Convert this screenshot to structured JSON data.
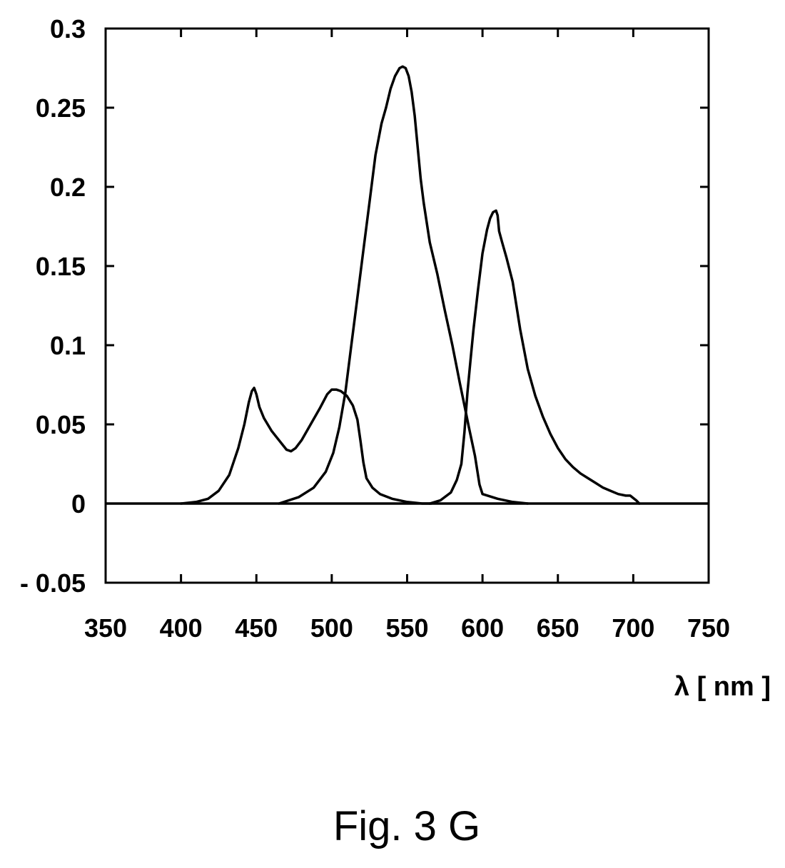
{
  "chart_data": {
    "type": "line",
    "title": "",
    "xlabel": "λ [ nm ]",
    "ylabel": "",
    "xlim": [
      350,
      750
    ],
    "ylim": [
      -0.05,
      0.3
    ],
    "x_ticks": [
      350,
      400,
      450,
      500,
      550,
      600,
      650,
      700,
      750
    ],
    "x_tick_labels": [
      "350",
      "400",
      "450",
      "500",
      "550",
      "600",
      "650",
      "700",
      "750"
    ],
    "y_ticks": [
      -0.05,
      0,
      0.05,
      0.1,
      0.15,
      0.2,
      0.25,
      0.3
    ],
    "y_tick_labels": [
      "- 0.05",
      "0",
      "0.05",
      "0.1",
      "0.15",
      "0.2",
      "0.25",
      "0.3"
    ],
    "grid": false,
    "legend": "none",
    "line_color": "#000000",
    "zero_line": true,
    "series": [
      {
        "x": [
          400,
          410,
          418,
          425,
          432,
          438,
          442,
          445,
          447,
          448.5,
          450,
          452,
          455,
          460,
          465,
          470,
          473,
          476,
          480,
          486,
          492,
          497,
          500,
          503,
          506,
          510,
          514,
          517,
          519,
          521,
          523,
          527,
          532,
          540,
          550,
          560,
          566
        ],
        "y": [
          0,
          0.001,
          0.003,
          0.008,
          0.018,
          0.035,
          0.05,
          0.064,
          0.071,
          0.073,
          0.069,
          0.061,
          0.054,
          0.046,
          0.04,
          0.034,
          0.033,
          0.035,
          0.04,
          0.05,
          0.06,
          0.069,
          0.072,
          0.072,
          0.071,
          0.068,
          0.062,
          0.053,
          0.04,
          0.026,
          0.016,
          0.01,
          0.006,
          0.003,
          0.001,
          0,
          0
        ]
      },
      {
        "x": [
          465,
          478,
          488,
          496,
          501,
          505,
          509,
          513,
          517,
          521,
          525,
          529,
          533,
          536,
          539,
          542,
          545,
          547,
          549,
          551,
          553,
          555,
          557,
          559,
          561,
          565,
          570,
          575,
          580,
          585,
          588,
          591,
          595,
          598,
          600,
          610,
          620,
          630
        ],
        "y": [
          0,
          0.004,
          0.01,
          0.02,
          0.032,
          0.048,
          0.07,
          0.1,
          0.13,
          0.16,
          0.19,
          0.22,
          0.24,
          0.25,
          0.262,
          0.27,
          0.275,
          0.276,
          0.275,
          0.27,
          0.26,
          0.245,
          0.225,
          0.205,
          0.19,
          0.165,
          0.145,
          0.122,
          0.1,
          0.076,
          0.062,
          0.048,
          0.03,
          0.012,
          0.006,
          0.003,
          0.001,
          0
        ]
      },
      {
        "x": [
          565,
          572,
          579,
          583,
          586,
          588,
          590,
          592,
          594,
          597,
          600,
          603,
          605,
          607,
          609,
          610,
          611,
          613,
          616,
          620,
          625,
          630,
          635,
          640,
          645,
          650,
          655,
          660,
          665,
          670,
          675,
          680,
          685,
          690,
          695,
          698,
          702,
          704
        ],
        "y": [
          0,
          0.002,
          0.007,
          0.015,
          0.025,
          0.045,
          0.07,
          0.09,
          0.11,
          0.135,
          0.158,
          0.173,
          0.18,
          0.184,
          0.185,
          0.182,
          0.172,
          0.165,
          0.155,
          0.14,
          0.11,
          0.085,
          0.068,
          0.055,
          0.044,
          0.035,
          0.028,
          0.023,
          0.019,
          0.016,
          0.013,
          0.01,
          0.008,
          0.006,
          0.005,
          0.005,
          0.002,
          0
        ]
      }
    ]
  },
  "figure": {
    "caption": "Fig. 3 G"
  }
}
